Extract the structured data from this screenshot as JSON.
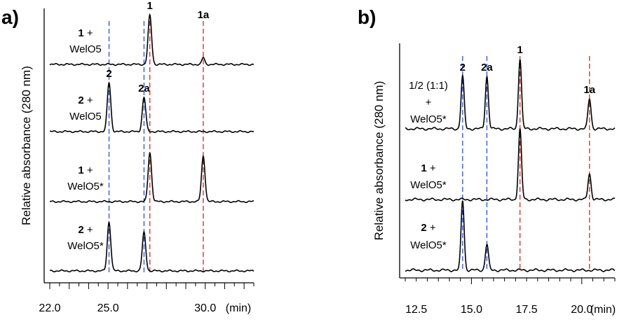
{
  "chart_data": [
    {
      "panel": "a)",
      "type": "line",
      "ylabel": "Relative absorbance (280 nm)",
      "xunit": "(min)",
      "xlim": [
        22.0,
        32.5
      ],
      "xticks": [
        "22.0",
        "25.0",
        "30.0"
      ],
      "xtick_values": [
        22.0,
        25.0,
        30.0
      ],
      "reference_lines": [
        {
          "label": "2",
          "x": 25.05,
          "color": "#2b50d8"
        },
        {
          "label": "2a",
          "x": 26.85,
          "color": "#2b50d8"
        },
        {
          "label": "1",
          "x": 27.15,
          "color": "#e02020"
        },
        {
          "label": "1a",
          "x": 29.9,
          "color": "#e02020"
        }
      ],
      "series": [
        {
          "label_bold": "1",
          "label_rest": " +",
          "label_line2": "WelO5",
          "peaks": [
            {
              "x": 27.15,
              "height": 1.0,
              "width": 0.09
            },
            {
              "x": 29.9,
              "height": 0.14,
              "width": 0.07
            }
          ]
        },
        {
          "label_bold": "2",
          "label_rest": " +",
          "label_line2": "WelO5",
          "peaks": [
            {
              "x": 25.05,
              "height": 1.0,
              "width": 0.09
            },
            {
              "x": 26.85,
              "height": 0.7,
              "width": 0.09
            }
          ]
        },
        {
          "label_bold": "1",
          "label_rest": " +",
          "label_line2": "WelO5*",
          "peaks": [
            {
              "x": 27.15,
              "height": 1.0,
              "width": 0.09
            },
            {
              "x": 29.9,
              "height": 0.93,
              "width": 0.09
            }
          ]
        },
        {
          "label_bold": "2",
          "label_rest": " +",
          "label_line2": "WelO5*",
          "peaks": [
            {
              "x": 25.05,
              "height": 1.0,
              "width": 0.09
            },
            {
              "x": 26.85,
              "height": 0.78,
              "width": 0.09
            }
          ]
        }
      ]
    },
    {
      "panel": "b)",
      "type": "line",
      "ylabel": "Relative absorbance (280 nm)",
      "xunit": "(min)",
      "xlim": [
        12.0,
        21.5
      ],
      "xticks": [
        "12.5",
        "15.0",
        "17.5",
        "20.0"
      ],
      "xtick_values": [
        12.5,
        15.0,
        17.5,
        20.0
      ],
      "reference_lines": [
        {
          "label": "2",
          "x": 14.6,
          "color": "#2b50d8"
        },
        {
          "label": "2a",
          "x": 15.7,
          "color": "#2b50d8"
        },
        {
          "label": "1",
          "x": 17.2,
          "color": "#e02020"
        },
        {
          "label": "1a",
          "x": 20.35,
          "color": "#e02020"
        }
      ],
      "series": [
        {
          "label_line1": "1/2 (1:1)",
          "label_line2": "+",
          "label_line3": "WelO5*",
          "peaks": [
            {
              "x": 14.6,
              "height": 0.75,
              "width": 0.07
            },
            {
              "x": 15.7,
              "height": 0.75,
              "width": 0.07
            },
            {
              "x": 17.2,
              "height": 1.0,
              "width": 0.07
            },
            {
              "x": 20.35,
              "height": 0.43,
              "width": 0.07
            }
          ]
        },
        {
          "label_bold": "1",
          "label_rest": " +",
          "label_line2": "WelO5*",
          "peaks": [
            {
              "x": 17.2,
              "height": 1.0,
              "width": 0.07
            },
            {
              "x": 20.35,
              "height": 0.37,
              "width": 0.07
            }
          ]
        },
        {
          "label_bold": "2",
          "label_rest": " +",
          "label_line2": "WelO5*",
          "peaks": [
            {
              "x": 14.6,
              "height": 1.0,
              "width": 0.07
            },
            {
              "x": 15.7,
              "height": 0.37,
              "width": 0.07
            }
          ]
        }
      ]
    }
  ]
}
